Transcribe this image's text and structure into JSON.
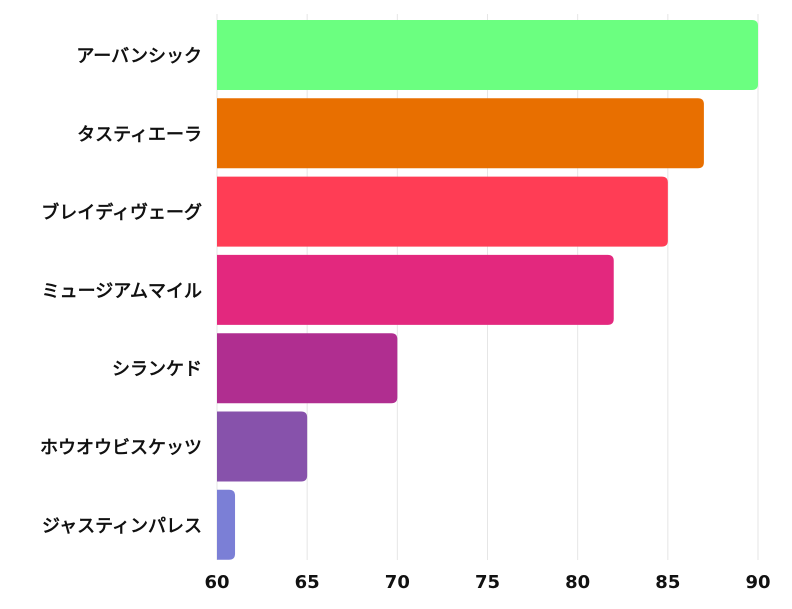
{
  "chart_data": {
    "type": "bar",
    "orientation": "horizontal",
    "categories": [
      "アーバンシック",
      "タスティエーラ",
      "ブレイディヴェーグ",
      "ミュージアムマイル",
      "シランケド",
      "ホウオウビスケッツ",
      "ジャスティンパレス"
    ],
    "values": [
      90,
      87,
      85,
      82,
      70,
      65,
      61
    ],
    "colors": [
      "#6bff80",
      "#e86f00",
      "#ff3d55",
      "#e3287e",
      "#b02e90",
      "#8752ab",
      "#7b7fd6"
    ],
    "xlim": [
      60,
      90
    ],
    "xticks": [
      "60",
      "65",
      "70",
      "75",
      "80",
      "85",
      "90"
    ],
    "grid": "vertical",
    "title": "",
    "xlabel": "",
    "ylabel": ""
  }
}
